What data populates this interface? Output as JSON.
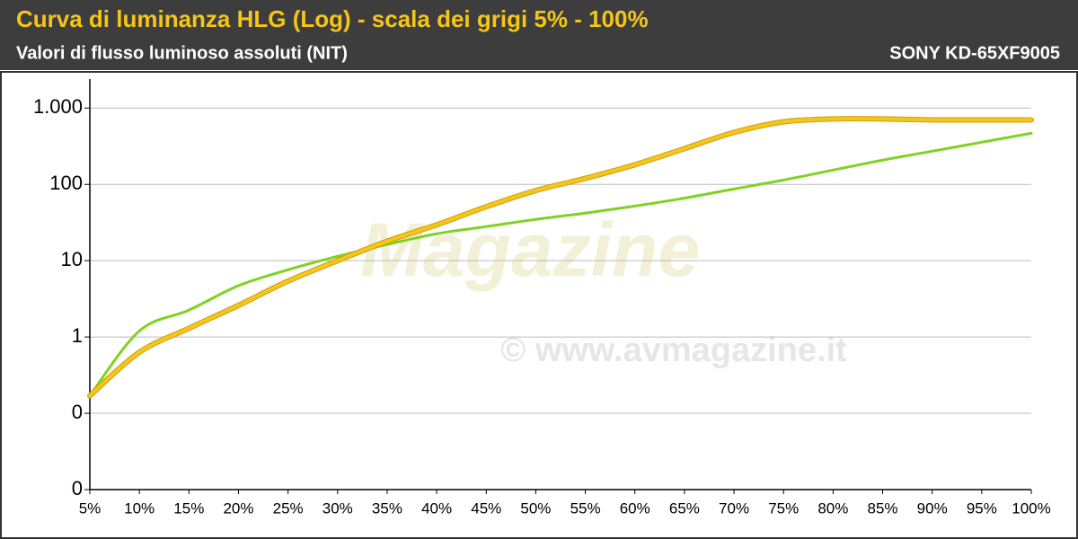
{
  "chart_data": {
    "type": "line",
    "title": "Curva di luminanza HLG (Log) - scala dei grigi 5% - 100%",
    "subtitle": "Valori di flusso luminoso assoluti (NIT)",
    "model": "SONY KD-65XF9005",
    "watermark": "© www.avmagazine.it",
    "logo": "Magazine",
    "categories": [
      "5%",
      "10%",
      "15%",
      "20%",
      "25%",
      "30%",
      "35%",
      "40%",
      "45%",
      "50%",
      "55%",
      "60%",
      "65%",
      "70%",
      "75%",
      "80%",
      "85%",
      "90%",
      "95%",
      "100%"
    ],
    "series": [
      {
        "color": "#7ed321",
        "values": [
          0.17,
          1.2,
          2.25,
          4.7,
          7.6,
          11.4,
          16.3,
          22.5,
          28,
          34.8,
          42,
          52,
          66,
          87,
          114,
          154,
          208,
          272,
          357,
          468
        ]
      },
      {
        "color": "#f5c518",
        "values": [
          0.17,
          0.63,
          1.3,
          2.6,
          5.4,
          10,
          18,
          29.5,
          51,
          83,
          120,
          181,
          294,
          480,
          660,
          720,
          720,
          700,
          700,
          700
        ]
      }
    ],
    "ylim": [
      0.01,
      2400
    ],
    "yticks": [
      {
        "value": 1000,
        "label": "1.000"
      },
      100,
      10,
      1,
      {
        "value": 0.1,
        "label": "0"
      },
      {
        "value": 0.01,
        "label": "0"
      }
    ],
    "log_scale": true,
    "grid": true
  }
}
